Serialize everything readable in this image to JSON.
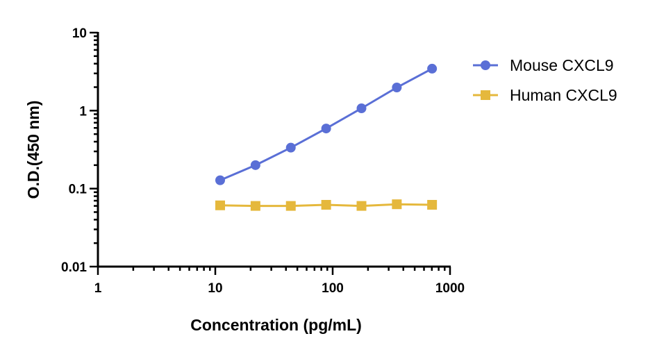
{
  "chart_data": {
    "type": "line",
    "xlabel": "Concentration (pg/mL)",
    "ylabel": "O.D.(450 nm)",
    "xscale": "log",
    "yscale": "log",
    "xlim": [
      1,
      1000
    ],
    "ylim": [
      0.01,
      10
    ],
    "x_ticks": [
      1,
      10,
      100,
      1000
    ],
    "x_tick_labels": [
      "1",
      "10",
      "100",
      "1000"
    ],
    "y_ticks": [
      0.01,
      0.1,
      1,
      10
    ],
    "y_tick_labels": [
      "0.01",
      "0.1",
      "1",
      "10"
    ],
    "grid": false,
    "legend_position": "right",
    "x": [
      11,
      22,
      44,
      88,
      176,
      352,
      703
    ],
    "series": [
      {
        "name": "Mouse CXCL9",
        "marker": "circle",
        "color": "#5a6fd6",
        "values": [
          0.128,
          0.2,
          0.335,
          0.59,
          1.07,
          1.98,
          3.45
        ]
      },
      {
        "name": "Human CXCL9",
        "marker": "square",
        "color": "#e5b83c",
        "values": [
          0.061,
          0.06,
          0.06,
          0.062,
          0.06,
          0.063,
          0.062
        ]
      }
    ]
  }
}
